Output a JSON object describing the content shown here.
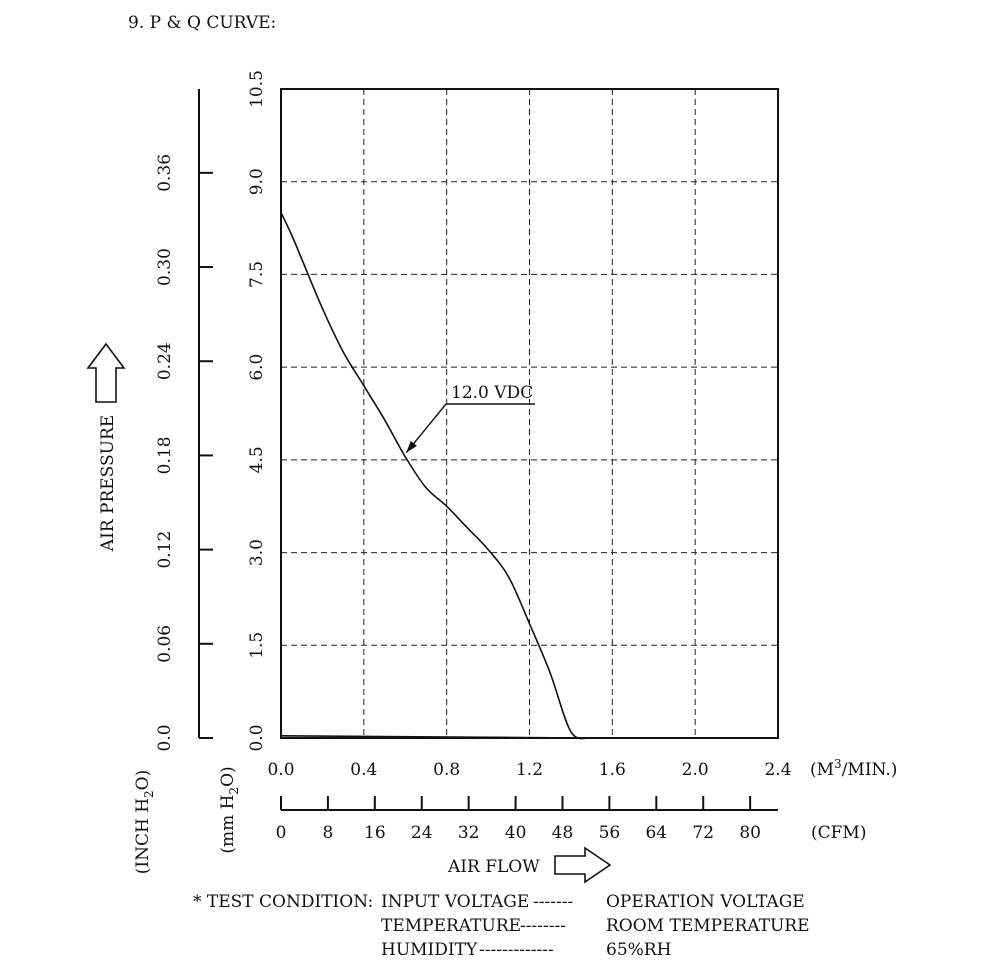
{
  "title": "9. P & Q CURVE:",
  "chart_data": {
    "type": "line",
    "x_axis": {
      "label": "AIR FLOW",
      "primary_unit": "(M³/MIN.)",
      "primary_unit_base": "(M",
      "primary_unit_sup": "3",
      "primary_unit_rest": "/MIN.)",
      "primary_ticks": [
        0.0,
        0.4,
        0.8,
        1.2,
        1.6,
        2.0,
        2.4
      ],
      "primary_tick_labels": [
        "0.0",
        "0.4",
        "0.8",
        "1.2",
        "1.6",
        "2.0",
        "2.4"
      ],
      "xlim": [
        0.0,
        2.4
      ],
      "secondary_unit": "(CFM)",
      "secondary_tick_labels": [
        "0",
        "8",
        "16",
        "24",
        "32",
        "40",
        "48",
        "56",
        "64",
        "72",
        "80"
      ],
      "secondary_values": [
        0,
        8,
        16,
        24,
        32,
        40,
        48,
        56,
        64,
        72,
        80
      ],
      "secondary_max": 84.75
    },
    "y_axis": {
      "label": "AIR PRESSURE",
      "primary_unit": "(mm H2O)",
      "primary_unit_parts": [
        "(mm H",
        "2",
        "O)"
      ],
      "primary_ticks": [
        0.0,
        1.5,
        3.0,
        4.5,
        6.0,
        7.5,
        9.0,
        10.5
      ],
      "primary_tick_labels": [
        "0.0",
        "1.5",
        "3.0",
        "4.5",
        "6.0",
        "7.5",
        "9.0",
        "10.5"
      ],
      "ylim": [
        0.0,
        10.5
      ],
      "secondary_unit": "(INCH H2O)",
      "secondary_unit_parts": [
        "(INCH H",
        "2",
        "O)"
      ],
      "secondary_tick_labels": [
        "0.0",
        "0.06",
        "0.12",
        "0.18",
        "0.24",
        "0.30",
        "0.36"
      ],
      "secondary_values": [
        0.0,
        0.06,
        0.12,
        0.18,
        0.24,
        0.3,
        0.36
      ],
      "secondary_max": 0.4134
    },
    "grid": true,
    "series": [
      {
        "name": "12.0 VDC",
        "x": [
          0.0,
          0.05,
          0.1,
          0.2,
          0.3,
          0.4,
          0.5,
          0.6,
          0.7,
          0.8,
          0.9,
          1.0,
          1.1,
          1.2,
          1.3,
          1.4,
          1.49
        ],
        "y": [
          8.5,
          8.15,
          7.75,
          6.95,
          6.25,
          5.7,
          5.15,
          4.55,
          4.05,
          3.75,
          3.4,
          3.05,
          2.6,
          1.85,
          1.05,
          0.1,
          0.0
        ]
      }
    ],
    "baseline": {
      "x": [
        0.0,
        1.49
      ],
      "y": [
        0.02,
        0.0
      ]
    },
    "annotation": {
      "text": "12.0 VDC",
      "target_x": 0.6,
      "target_y": 4.6
    }
  },
  "notes": {
    "prefix": "* TEST CONDITION:",
    "lines": [
      {
        "left": "INPUT VOLTAGE",
        "dashes": "-------",
        "right": "OPERATION VOLTAGE"
      },
      {
        "left": "TEMPERATURE",
        "dashes": "--------",
        "right": "ROOM TEMPERATURE"
      },
      {
        "left": "HUMIDITY",
        "dashes": "-------------",
        "right": "65%RH"
      }
    ]
  }
}
